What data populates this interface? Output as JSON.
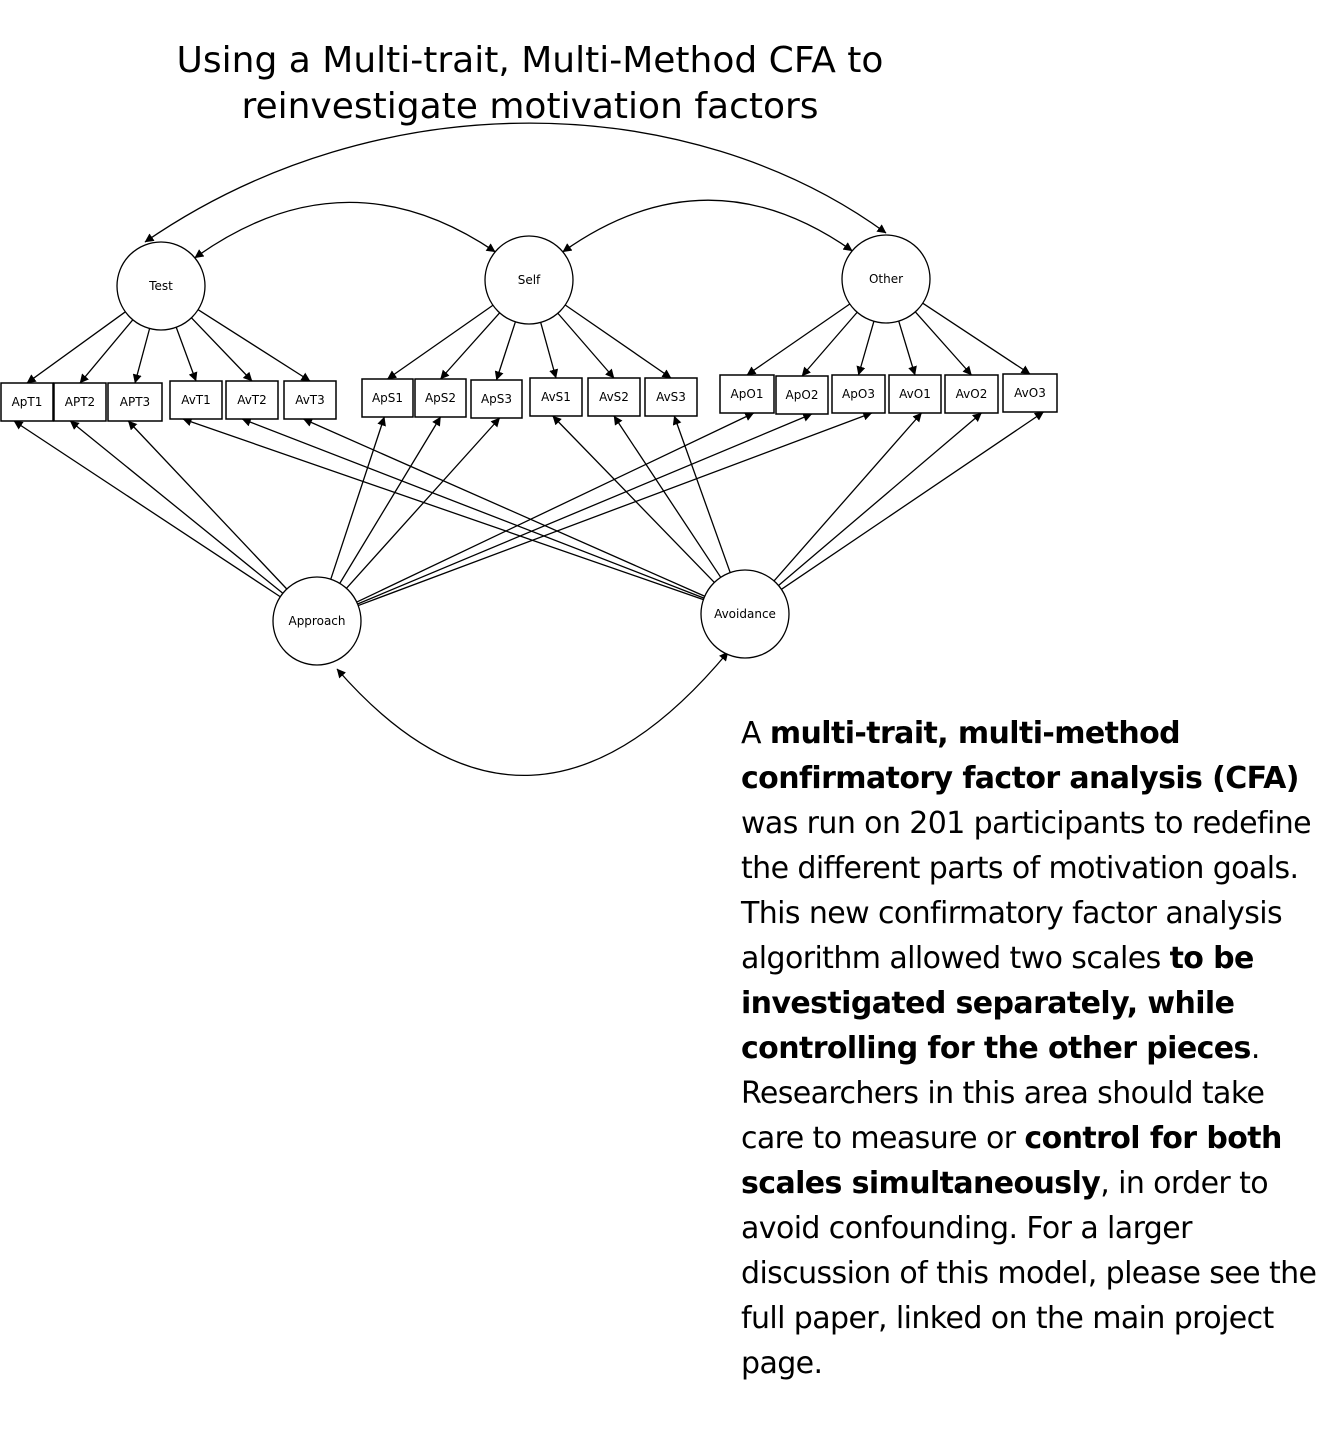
{
  "title": {
    "line1": "Using a Multi-trait, Multi-Method CFA to",
    "line2": "reinvestigate motivation factors"
  },
  "diagram": {
    "latent_factors": [
      {
        "id": "test",
        "label": "Test"
      },
      {
        "id": "self",
        "label": "Self"
      },
      {
        "id": "other",
        "label": "Other"
      },
      {
        "id": "approach",
        "label": "Approach"
      },
      {
        "id": "avoidance",
        "label": "Avoidance"
      }
    ],
    "indicators": [
      {
        "id": "ApT1",
        "label": "ApT1"
      },
      {
        "id": "APT2",
        "label": "APT2"
      },
      {
        "id": "APT3",
        "label": "APT3"
      },
      {
        "id": "AvT1",
        "label": "AvT1"
      },
      {
        "id": "AvT2",
        "label": "AvT2"
      },
      {
        "id": "AvT3",
        "label": "AvT3"
      },
      {
        "id": "ApS1",
        "label": "ApS1"
      },
      {
        "id": "ApS2",
        "label": "ApS2"
      },
      {
        "id": "ApS3",
        "label": "ApS3"
      },
      {
        "id": "AvS1",
        "label": "AvS1"
      },
      {
        "id": "AvS2",
        "label": "AvS2"
      },
      {
        "id": "AvS3",
        "label": "AvS3"
      },
      {
        "id": "ApO1",
        "label": "ApO1"
      },
      {
        "id": "ApO2",
        "label": "ApO2"
      },
      {
        "id": "ApO3",
        "label": "ApO3"
      },
      {
        "id": "AvO1",
        "label": "AvO1"
      },
      {
        "id": "AvO2",
        "label": "AvO2"
      },
      {
        "id": "AvO3",
        "label": "AvO3"
      }
    ],
    "loadings": [
      {
        "from": "test",
        "to": [
          "ApT1",
          "APT2",
          "APT3",
          "AvT1",
          "AvT2",
          "AvT3"
        ]
      },
      {
        "from": "self",
        "to": [
          "ApS1",
          "ApS2",
          "ApS3",
          "AvS1",
          "AvS2",
          "AvS3"
        ]
      },
      {
        "from": "other",
        "to": [
          "ApO1",
          "ApO2",
          "ApO3",
          "AvO1",
          "AvO2",
          "AvO3"
        ]
      },
      {
        "from": "approach",
        "to": [
          "ApT1",
          "APT2",
          "APT3",
          "ApS1",
          "ApS2",
          "ApS3",
          "ApO1",
          "ApO2",
          "ApO3"
        ]
      },
      {
        "from": "avoidance",
        "to": [
          "AvT1",
          "AvT2",
          "AvT3",
          "AvS1",
          "AvS2",
          "AvS3",
          "AvO1",
          "AvO2",
          "AvO3"
        ]
      }
    ],
    "correlations": [
      [
        "test",
        "self"
      ],
      [
        "self",
        "other"
      ],
      [
        "test",
        "other"
      ],
      [
        "approach",
        "avoidance"
      ]
    ]
  },
  "summary": {
    "t1": "A ",
    "b1": "multi-trait, multi-method confirmatory factor analysis (CFA)",
    "t2": " was run on 201 participants to redefine the different parts of motivation goals. This new confirmatory factor analysis algorithm allowed two scales ",
    "b2": "to be investigated separately, while controlling for the other pieces",
    "t3": ". Researchers in this area should take care to measure or ",
    "b3": "control for both scales simultaneously",
    "t4": ", in order to avoid confounding. For a larger discussion of this model, please see the full paper, linked on the main project page."
  }
}
